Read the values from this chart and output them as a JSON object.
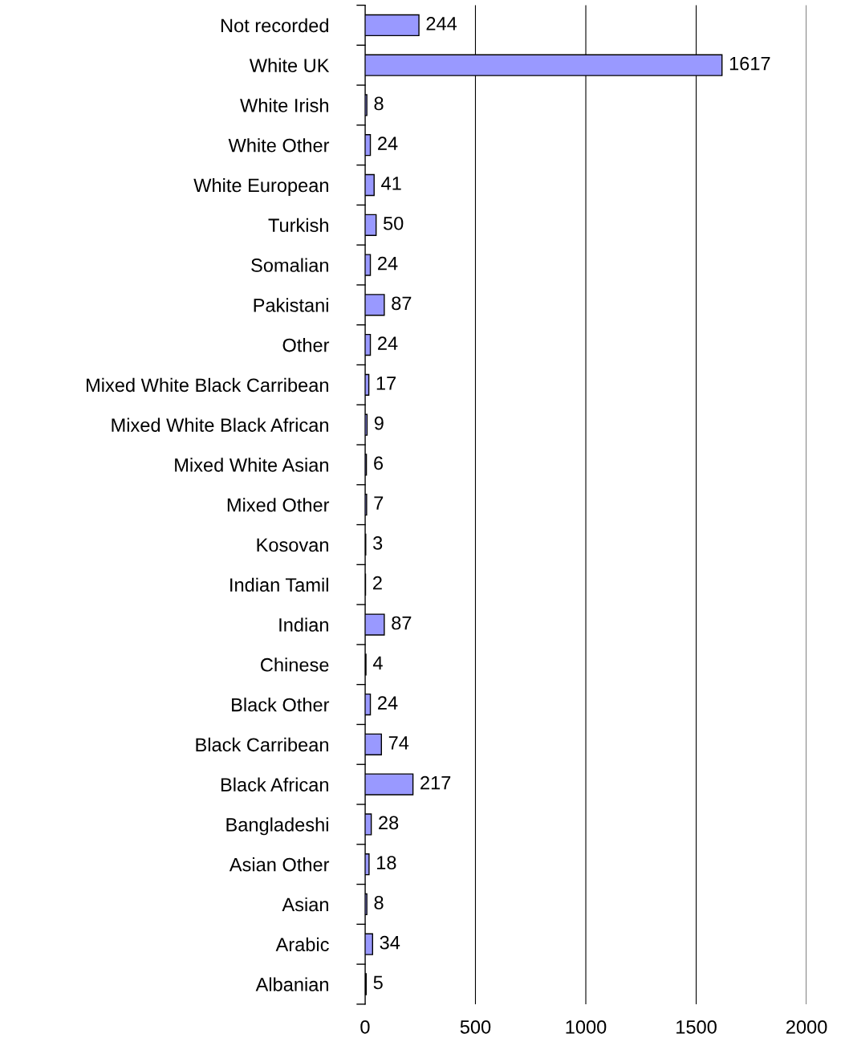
{
  "chart_data": {
    "type": "bar",
    "orientation": "horizontal",
    "categories": [
      "Not recorded",
      "White UK",
      "White Irish",
      "White Other",
      "White European",
      "Turkish",
      "Somalian",
      "Pakistani",
      "Other",
      "Mixed White Black Carribean",
      "Mixed White Black African",
      "Mixed White Asian",
      "Mixed Other",
      "Kosovan",
      "Indian Tamil",
      "Indian",
      "Chinese",
      "Black Other",
      "Black Carribean",
      "Black African",
      "Bangladeshi",
      "Asian Other",
      "Asian",
      "Arabic",
      "Albanian"
    ],
    "values": [
      244,
      1617,
      8,
      24,
      41,
      50,
      24,
      87,
      24,
      17,
      9,
      6,
      7,
      3,
      2,
      87,
      4,
      24,
      74,
      217,
      28,
      18,
      8,
      34,
      5
    ],
    "color": "#9999ff",
    "xlim": [
      0,
      2000
    ],
    "xticks": [
      0,
      500,
      1000,
      1500,
      2000
    ],
    "grid": "x",
    "data_labels": true
  }
}
